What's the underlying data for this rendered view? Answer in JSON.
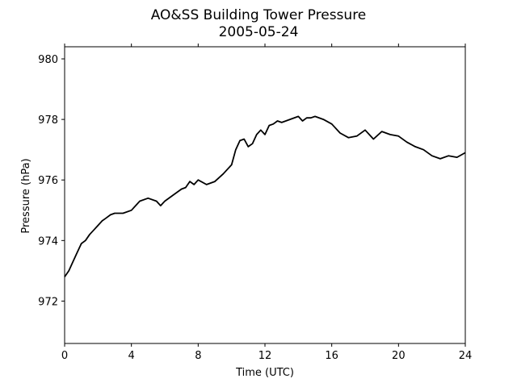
{
  "chart_data": {
    "type": "line",
    "title": "AO&SS Building Tower Pressure",
    "subtitle": "2005-05-24",
    "xlabel": "Time (UTC)",
    "ylabel": "Pressure (hPa)",
    "xlim": [
      0,
      24
    ],
    "ylim": [
      970.6,
      980.4
    ],
    "xticks": [
      0,
      4,
      8,
      12,
      16,
      20,
      24
    ],
    "yticks": [
      972,
      974,
      976,
      978,
      980
    ],
    "grid": false,
    "line_color": "#000000",
    "series": [
      {
        "x": [
          0,
          0.25,
          0.5,
          0.75,
          1.0,
          1.25,
          1.5,
          1.75,
          2.0,
          2.25,
          2.5,
          2.75,
          3.0,
          3.5,
          4.0,
          4.5,
          5.0,
          5.5,
          5.75,
          6.0,
          6.5,
          7.0,
          7.25,
          7.5,
          7.75,
          8.0,
          8.5,
          9.0,
          9.5,
          10.0,
          10.25,
          10.5,
          10.75,
          11.0,
          11.25,
          11.5,
          11.75,
          12.0,
          12.25,
          12.5,
          12.75,
          13.0,
          13.5,
          14.0,
          14.25,
          14.5,
          14.75,
          15.0,
          15.5,
          16.0,
          16.5,
          17.0,
          17.5,
          18.0,
          18.5,
          19.0,
          19.5,
          20.0,
          20.5,
          21.0,
          21.5,
          22.0,
          22.5,
          23.0,
          23.5,
          24.0
        ],
        "y": [
          972.8,
          973.0,
          973.3,
          973.6,
          973.9,
          974.0,
          974.2,
          974.35,
          974.5,
          974.65,
          974.75,
          974.85,
          974.9,
          974.9,
          975.0,
          975.3,
          975.4,
          975.3,
          975.15,
          975.3,
          975.5,
          975.7,
          975.75,
          975.95,
          975.85,
          976.0,
          975.85,
          975.95,
          976.2,
          976.5,
          977.0,
          977.3,
          977.35,
          977.1,
          977.2,
          977.5,
          977.65,
          977.5,
          977.8,
          977.85,
          977.95,
          977.9,
          978.0,
          978.1,
          977.95,
          978.05,
          978.05,
          978.1,
          978.0,
          977.85,
          977.55,
          977.4,
          977.45,
          977.65,
          977.35,
          977.6,
          977.5,
          977.45,
          977.25,
          977.1,
          977.0,
          976.8,
          976.7,
          976.8,
          976.75,
          976.9
        ]
      }
    ]
  }
}
